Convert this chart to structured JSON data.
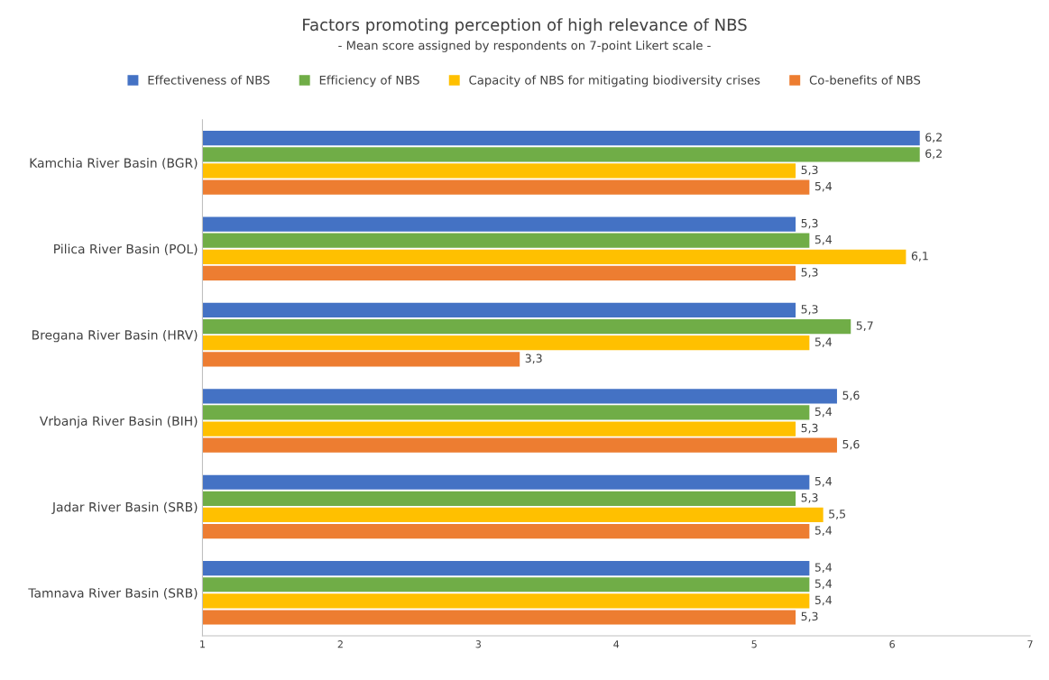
{
  "chart_data": {
    "type": "bar",
    "orientation": "horizontal",
    "title": "Factors promoting perception of high relevance of NBS",
    "subtitle": "- Mean score assigned by respondents on 7-point Likert scale -",
    "categories": [
      "Kamchia River Basin (BGR)",
      "Pilica River Basin (POL)",
      "Bregana River Basin (HRV)",
      "Vrbanja River Basin (BIH)",
      "Jadar River Basin (SRB)",
      "Tamnava River Basin (SRB)"
    ],
    "series": [
      {
        "name": "Effectiveness of NBS",
        "color": "#4472c4",
        "values": [
          6.2,
          5.3,
          5.3,
          5.6,
          5.4,
          5.4
        ],
        "value_labels": [
          "6,2",
          "5,3",
          "5,3",
          "5,6",
          "5,4",
          "5,4"
        ]
      },
      {
        "name": "Efficiency of NBS",
        "color": "#70ad47",
        "values": [
          6.2,
          5.4,
          5.7,
          5.4,
          5.3,
          5.4
        ],
        "value_labels": [
          "6,2",
          "5,4",
          "5,7",
          "5,4",
          "5,3",
          "5,4"
        ]
      },
      {
        "name": "Capacity of NBS for mitigating biodiversity crises",
        "color": "#ffc000",
        "values": [
          5.3,
          6.1,
          5.4,
          5.3,
          5.5,
          5.4
        ],
        "value_labels": [
          "5,3",
          "6,1",
          "5,4",
          "5,3",
          "5,5",
          "5,4"
        ]
      },
      {
        "name": "Co-benefits of NBS",
        "color": "#ed7d31",
        "values": [
          5.4,
          5.3,
          3.3,
          5.6,
          5.4,
          5.3
        ],
        "value_labels": [
          "5,4",
          "5,3",
          "3,3",
          "5,6",
          "5,4",
          "5,3"
        ]
      }
    ],
    "xlim": [
      1,
      7
    ],
    "xticks": [
      1,
      2,
      3,
      4,
      5,
      6,
      7
    ],
    "grid": false,
    "legend": "top"
  }
}
